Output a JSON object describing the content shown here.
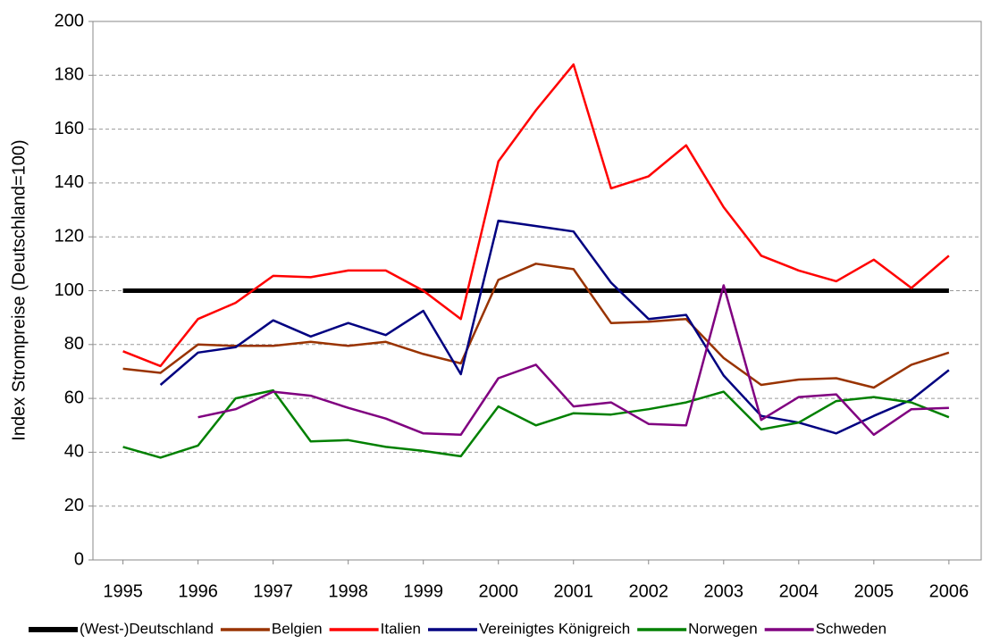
{
  "chart_data": {
    "type": "line",
    "y_label": "Index Strompreise (Deutschland=100)",
    "x": [
      1995,
      1995.5,
      1996,
      1996.5,
      1997,
      1997.5,
      1998,
      1998.5,
      1999,
      1999.5,
      2000,
      2000.5,
      2001,
      2001.5,
      2002,
      2002.5,
      2003,
      2003.5,
      2004,
      2004.5,
      2005,
      2005.5,
      2006
    ],
    "xlim": [
      1994.6,
      2006.43
    ],
    "xticks": [
      1995,
      1996,
      1997,
      1998,
      1999,
      2000,
      2001,
      2002,
      2003,
      2004,
      2005,
      2006
    ],
    "ylim": [
      0,
      200
    ],
    "yticks": [
      0,
      20,
      40,
      60,
      80,
      100,
      120,
      140,
      160,
      180,
      200
    ],
    "grid": true,
    "legend": "bottom",
    "series": [
      {
        "name": "(West-)Deutschland",
        "color": "#000000",
        "width": 5,
        "values": [
          100,
          100,
          100,
          100,
          100,
          100,
          100,
          100,
          100,
          100,
          100,
          100,
          100,
          100,
          100,
          100,
          100,
          100,
          100,
          100,
          100,
          100,
          100
        ]
      },
      {
        "name": "Belgien",
        "color": "#993300",
        "width": 2.5,
        "values": [
          71,
          69.5,
          80,
          79.5,
          79.5,
          81,
          79.5,
          81,
          76.5,
          73,
          104,
          110,
          108,
          88,
          88.5,
          89.5,
          75,
          65,
          67,
          67.5,
          64,
          72.5,
          77
        ]
      },
      {
        "name": "Italien",
        "color": "#ff0000",
        "width": 2.5,
        "values": [
          77.5,
          72,
          89.5,
          95.5,
          105.5,
          105,
          107.5,
          107.5,
          100,
          89.5,
          148,
          167,
          184,
          138,
          142.5,
          154,
          131,
          113,
          107.5,
          103.5,
          111.5,
          101,
          113
        ]
      },
      {
        "name": "Vereinigtes Königreich",
        "color": "#000080",
        "width": 2.5,
        "values": [
          null,
          65,
          77,
          79,
          89,
          83,
          88,
          83.5,
          92.5,
          69,
          126,
          124,
          122,
          103,
          89.5,
          91,
          68.5,
          53.5,
          51,
          47,
          53.5,
          59.5,
          70.5
        ]
      },
      {
        "name": "Norwegen",
        "color": "#008000",
        "width": 2.5,
        "values": [
          42,
          38,
          42.5,
          60,
          63,
          44,
          44.5,
          42,
          40.5,
          38.5,
          57,
          50,
          54.5,
          54,
          56,
          58.5,
          62.5,
          48.5,
          51,
          59,
          60.5,
          58.5,
          53
        ]
      },
      {
        "name": "Schweden",
        "color": "#800080",
        "width": 2.5,
        "values": [
          null,
          null,
          53,
          56,
          62.5,
          61,
          56.5,
          52.5,
          47,
          46.5,
          67.5,
          72.5,
          57,
          58.5,
          50.5,
          50,
          102,
          52,
          60.5,
          61.5,
          46.5,
          56,
          56.5
        ]
      }
    ]
  }
}
